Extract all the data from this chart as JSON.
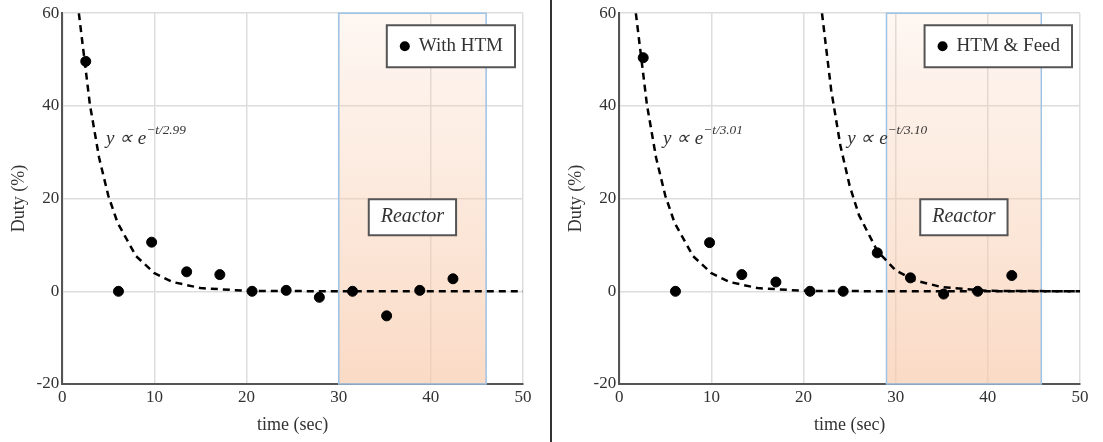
{
  "chart_data": [
    {
      "type": "scatter",
      "xlabel": "time (sec)",
      "ylabel": "Duty (%)",
      "xlim": [
        0,
        50
      ],
      "ylim": [
        -20,
        60
      ],
      "xticks": [
        0,
        10,
        20,
        30,
        40,
        50
      ],
      "yticks": [
        -20,
        0,
        20,
        40,
        60
      ],
      "grid": true,
      "legend": "top right",
      "marker": "circle",
      "series": [
        {
          "type": "scatter",
          "name": "With HTM",
          "color": "#000000",
          "x": [
            2.55,
            6.1,
            9.7,
            13.5,
            17.1,
            20.6,
            24.3,
            27.9,
            31.5,
            35.2,
            38.8,
            42.4
          ],
          "values": [
            49.6,
            0,
            10.6,
            4.2,
            3.6,
            0,
            0.2,
            -1.3,
            0,
            -5.3,
            0.2,
            2.7
          ]
        },
        {
          "type": "line",
          "color": "#000000",
          "line_style": "dashed",
          "marker": "none",
          "x": [
            1.8,
            3,
            4,
            5,
            6,
            8,
            10,
            12,
            15,
            20,
            30,
            40,
            50
          ],
          "values": [
            60,
            40.3,
            28.8,
            20.6,
            14.8,
            7.6,
            3.9,
            2,
            0.7,
            0.1,
            0,
            0,
            0
          ]
        }
      ],
      "bands": [
        {
          "axis": "x",
          "from": 30,
          "to": 46,
          "label": "Reactor",
          "color": "#f8cbad"
        }
      ],
      "annotations": [
        "y ∝ e$^{−t/2.99}$"
      ]
    },
    {
      "type": "scatter",
      "xlabel": "time (sec)",
      "ylabel": "Duty (%)",
      "xlim": [
        0,
        50
      ],
      "ylim": [
        -20,
        60
      ],
      "xticks": [
        0,
        10,
        20,
        30,
        40,
        50
      ],
      "yticks": [
        -20,
        0,
        20,
        40,
        60
      ],
      "grid": true,
      "legend": "top right",
      "marker": "circle",
      "series": [
        {
          "type": "scatter",
          "name": "HTM & Feed",
          "color": "#000000",
          "x": [
            2.6,
            6.1,
            9.8,
            13.3,
            17,
            20.7,
            24.3,
            28,
            31.6,
            35.2,
            38.9,
            42.6
          ],
          "values": [
            50.4,
            0,
            10.5,
            3.6,
            2,
            0,
            0,
            8.3,
            2.9,
            -0.6,
            0,
            3.4
          ]
        },
        {
          "type": "line",
          "color": "#000000",
          "line_style": "dashed",
          "marker": "none",
          "x": [
            1.8,
            3,
            4,
            5,
            6,
            8,
            10,
            12,
            15,
            20,
            30,
            40,
            50
          ],
          "values": [
            60,
            40.3,
            28.8,
            20.6,
            14.8,
            7.6,
            3.9,
            2,
            0.7,
            0.1,
            0,
            0,
            0
          ]
        },
        {
          "type": "line",
          "color": "#000000",
          "line_style": "dashed",
          "marker": "none",
          "x": [
            22,
            23,
            24,
            25,
            26,
            28,
            30,
            32,
            35,
            40,
            50
          ],
          "values": [
            60,
            43.4,
            31.4,
            22.8,
            16.5,
            8.7,
            4.5,
            2.4,
            0.9,
            0.1,
            0
          ]
        }
      ],
      "bands": [
        {
          "axis": "x",
          "from": 29,
          "to": 45.8,
          "label": "Reactor",
          "color": "#f8cbad"
        }
      ],
      "annotations": [
        "y ∝ e$^{−t/3.01}$",
        "y ∝ e$^{−t/3.10}$"
      ]
    }
  ]
}
